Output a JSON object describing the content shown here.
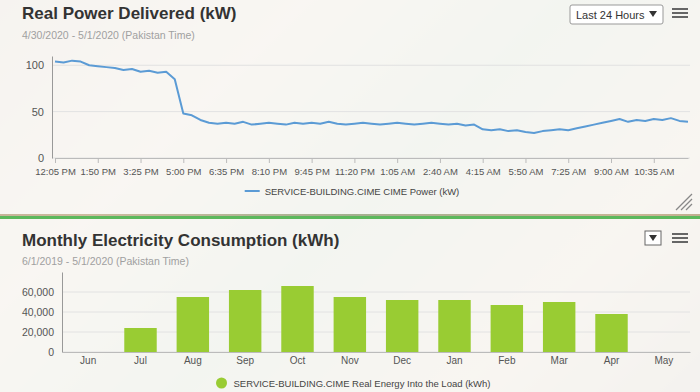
{
  "controls": {
    "range_select": "Last 24 Hours"
  },
  "chart_data": [
    {
      "type": "line",
      "title": "Real Power Delivered (kW)",
      "subtitle": "4/30/2020 - 5/1/2020 (Pakistan Time)",
      "categories": [
        "12:05 PM",
        null,
        null,
        null,
        null,
        "1:50 PM",
        null,
        null,
        null,
        null,
        "3:25 PM",
        null,
        null,
        null,
        null,
        "5:00 PM",
        null,
        null,
        null,
        null,
        "6:35 PM",
        null,
        null,
        null,
        null,
        "8:10 PM",
        null,
        null,
        null,
        null,
        "9:45 PM",
        null,
        null,
        null,
        null,
        "11:20 PM",
        null,
        null,
        null,
        null,
        "1:05 AM",
        null,
        null,
        null,
        null,
        "2:40 AM",
        null,
        null,
        null,
        null,
        "4:15 AM",
        null,
        null,
        null,
        null,
        "5:50 AM",
        null,
        null,
        null,
        null,
        "7:25 AM",
        null,
        null,
        null,
        null,
        "9:00 AM",
        null,
        null,
        null,
        null,
        "10:35 AM",
        null,
        null,
        null,
        null
      ],
      "series": [
        {
          "name": "SERVICE-BUILDING.CIME CIME Power (kW)",
          "color": "#5b9bd5",
          "values": [
            104,
            103,
            105,
            104,
            100,
            99,
            98,
            97,
            95,
            96,
            93,
            94,
            92,
            93,
            85,
            48,
            46,
            41,
            38,
            37,
            38,
            37,
            39,
            36,
            37,
            38,
            37,
            36,
            38,
            37,
            38,
            37,
            39,
            37,
            36,
            37,
            38,
            37,
            36,
            37,
            38,
            37,
            36,
            37,
            38,
            37,
            36,
            37,
            35,
            36,
            31,
            30,
            31,
            29,
            30,
            28,
            27,
            29,
            30,
            31,
            30,
            32,
            34,
            36,
            38,
            40,
            42,
            39,
            41,
            40,
            42,
            41,
            43,
            40,
            39
          ]
        }
      ],
      "ylim": [
        0,
        110
      ],
      "yticks": [
        0,
        50,
        100
      ],
      "grid": true,
      "legend": "bottom"
    },
    {
      "type": "bar",
      "title": "Monthly Electricity Consumption (kWh)",
      "subtitle": "6/1/2019 - 5/1/2020 (Pakistan Time)",
      "categories": [
        "Jun",
        "Jul",
        "Aug",
        "Sep",
        "Oct",
        "Nov",
        "Dec",
        "Jan",
        "Feb",
        "Mar",
        "Apr",
        "May"
      ],
      "series": [
        {
          "name": "SERVICE-BUILDING.CIME Real Energy Into the Load (kWh)",
          "color": "#99cc33",
          "values": [
            null,
            24000,
            55000,
            62000,
            66000,
            55000,
            52000,
            52000,
            47000,
            50000,
            38000,
            null
          ]
        }
      ],
      "ylim": [
        0,
        80000
      ],
      "yticks": [
        0,
        {
          "value": 20000,
          "label": "20,000"
        },
        {
          "value": 40000,
          "label": "40,000"
        },
        {
          "value": 60000,
          "label": "60,000"
        }
      ],
      "grid": true,
      "legend": "bottom"
    }
  ]
}
